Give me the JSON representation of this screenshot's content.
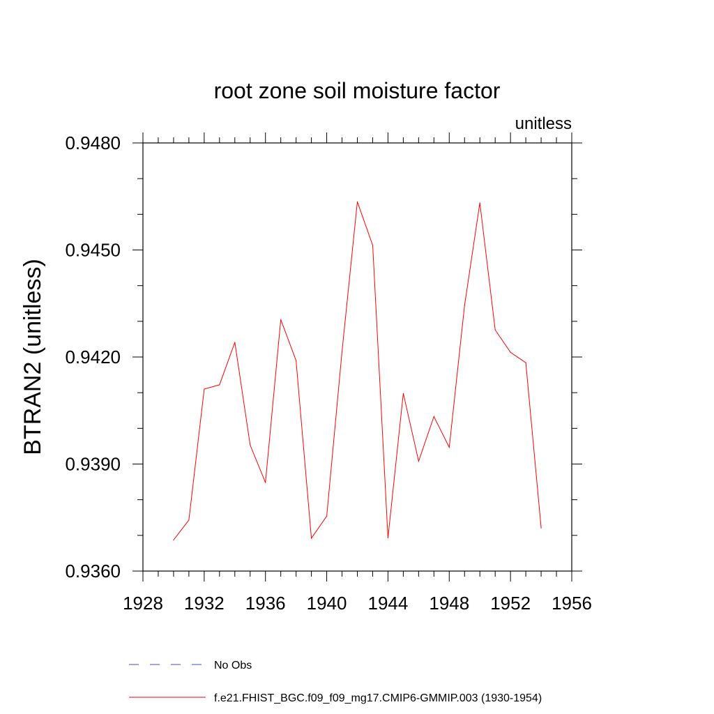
{
  "chart_data": {
    "type": "line",
    "title": "root zone soil moisture factor",
    "units_label": "unitless",
    "ylabel": "BTRAN2  (unitless)",
    "xlabel": "",
    "xlim": [
      1928,
      1956
    ],
    "ylim": [
      0.936,
      0.948
    ],
    "x_major_ticks": [
      1928,
      1932,
      1936,
      1940,
      1944,
      1948,
      1952,
      1956
    ],
    "x_tick_labels": [
      "1928",
      "1932",
      "1936",
      "1940",
      "1944",
      "1948",
      "1952",
      "1956"
    ],
    "x_minor_step": 1,
    "y_major_ticks": [
      0.936,
      0.939,
      0.942,
      0.945,
      0.948
    ],
    "y_tick_labels": [
      "0.9360",
      "0.9390",
      "0.9420",
      "0.9450",
      "0.9480"
    ],
    "y_minor_step": 0.001,
    "grid": false,
    "series": [
      {
        "name": "f.e21.FHIST_BGC.f09_f09_mg17.CMIP6-GMMIP.003 (1930-1954)",
        "color": "#ff0000",
        "style": "solid",
        "x": [
          1930,
          1931,
          1932,
          1933,
          1934,
          1935,
          1936,
          1937,
          1938,
          1939,
          1940,
          1941,
          1942,
          1943,
          1944,
          1945,
          1946,
          1947,
          1948,
          1949,
          1950,
          1951,
          1952,
          1953,
          1954
        ],
        "y": [
          0.93687,
          0.93743,
          0.9411,
          0.94122,
          0.94241,
          0.93953,
          0.93848,
          0.94305,
          0.9419,
          0.93692,
          0.93754,
          0.94215,
          0.94635,
          0.94513,
          0.93693,
          0.94098,
          0.93908,
          0.94033,
          0.93947,
          0.94345,
          0.94632,
          0.94276,
          0.94213,
          0.94184,
          0.93721
        ]
      }
    ],
    "legend": {
      "position": "bottom",
      "entries": [
        {
          "label": "No Obs",
          "color": "#4444cc",
          "style": "dashed"
        },
        {
          "label": "f.e21.FHIST_BGC.f09_f09_mg17.CMIP6-GMMIP.003 (1930-1954)",
          "color": "#ff0000",
          "style": "solid"
        }
      ]
    }
  }
}
